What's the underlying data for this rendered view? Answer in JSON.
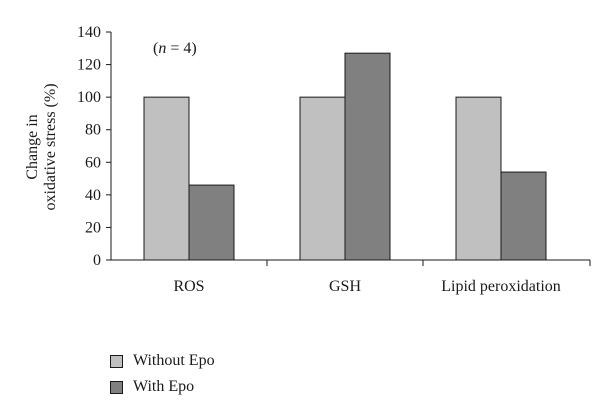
{
  "chart_data": {
    "type": "bar",
    "categories": [
      "ROS",
      "GSH",
      "Lipid peroxidation"
    ],
    "series": [
      {
        "name": "Without Epo",
        "values": [
          100,
          100,
          100
        ],
        "color": "#c0c0c0"
      },
      {
        "name": "With Epo",
        "values": [
          46,
          127,
          54
        ],
        "color": "#808080"
      }
    ],
    "ylabel_lines": [
      "Change in",
      "oxidative stress (%)"
    ],
    "xlabel": "",
    "ylim": [
      0,
      140
    ],
    "yticks": [
      0,
      20,
      40,
      60,
      80,
      100,
      120,
      140
    ],
    "annotation": "(n = 4)",
    "annotation_var": "n",
    "annotation_rest": " = 4)",
    "grid": false,
    "legend_position": "bottom-left"
  }
}
